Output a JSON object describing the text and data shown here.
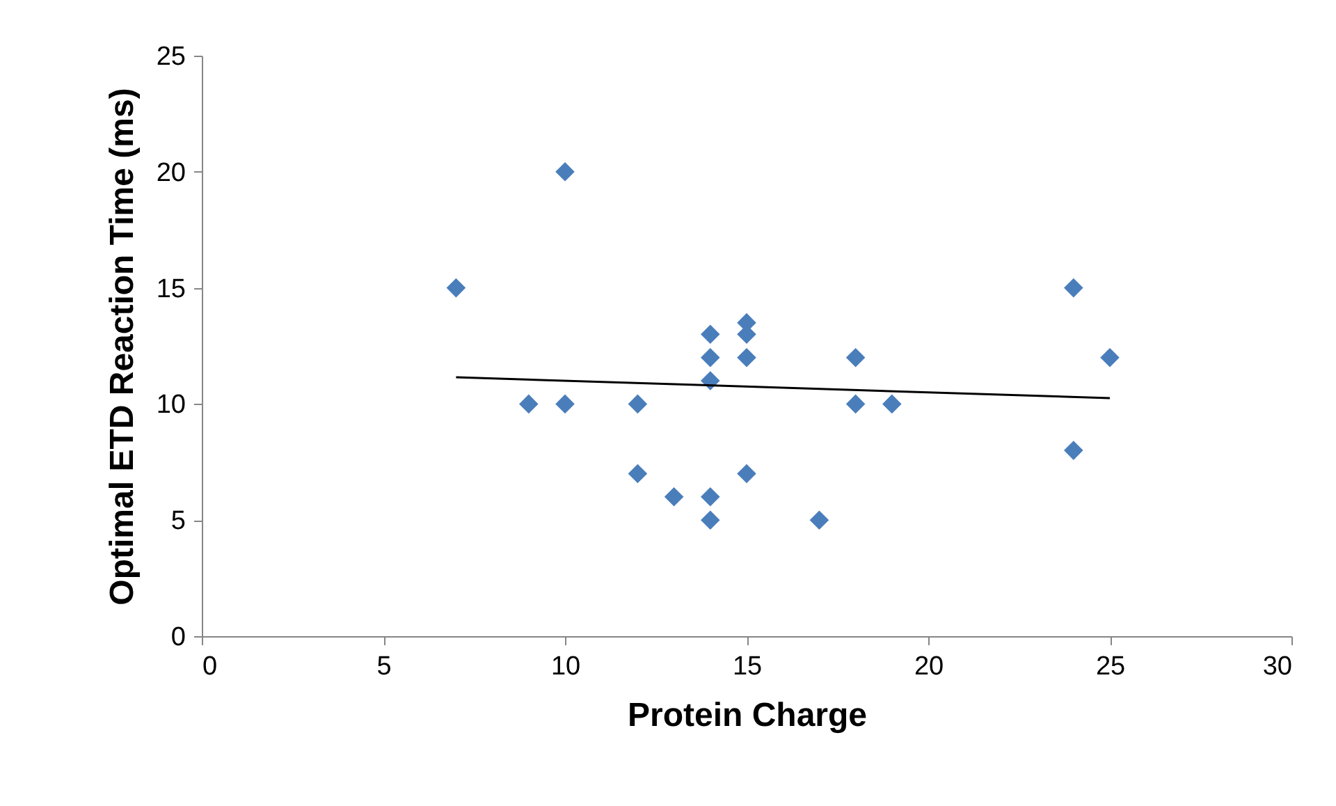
{
  "chart_data": {
    "type": "scatter",
    "xlabel": "Protein Charge",
    "ylabel": "Optimal ETD Reaction Time (ms)",
    "xlim": [
      0,
      30
    ],
    "xticks": [
      0,
      5,
      10,
      15,
      20,
      25,
      30
    ],
    "ylim": [
      0,
      25
    ],
    "yticks": [
      0,
      5,
      10,
      15,
      20,
      25
    ],
    "grid": false,
    "marker": "diamond",
    "series": [
      {
        "color": "#4a7ebb",
        "x": [
          7,
          9,
          10,
          10,
          12,
          12,
          13,
          14,
          14,
          14,
          14,
          14,
          15,
          15,
          15,
          15,
          17,
          18,
          18,
          19,
          24,
          24,
          25
        ],
        "values": [
          15,
          10,
          20,
          10,
          10,
          7,
          6,
          13,
          12,
          11,
          6,
          5,
          13.5,
          13,
          12,
          7,
          5,
          12,
          10,
          10,
          15,
          8,
          12
        ]
      },
      {
        "type": "line",
        "color": "#000000",
        "x": [
          7,
          25
        ],
        "values": [
          11.15,
          10.25
        ],
        "marker": "none"
      }
    ]
  }
}
